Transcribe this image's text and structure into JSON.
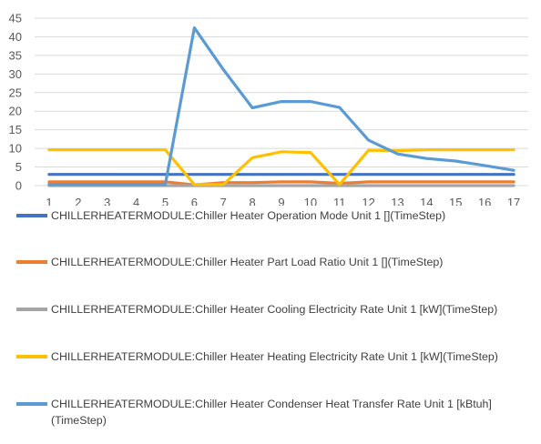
{
  "chart_data": {
    "type": "line",
    "x": [
      1,
      2,
      3,
      4,
      5,
      6,
      7,
      8,
      9,
      10,
      11,
      12,
      13,
      14,
      15,
      16,
      17
    ],
    "ylim": [
      0,
      45
    ],
    "yticks": [
      0,
      5,
      10,
      15,
      20,
      25,
      30,
      35,
      40,
      45
    ],
    "grid": "horizontal",
    "legend_position": "bottom",
    "series": [
      {
        "name": "CHILLERHEATERMODULE:Chiller Heater Operation Mode Unit 1 [](TimeStep)",
        "color": "#4472C4",
        "values": [
          3,
          3,
          3,
          3,
          3,
          3,
          3,
          3,
          3,
          3,
          3,
          3,
          3,
          3,
          3,
          3,
          3
        ]
      },
      {
        "name": "CHILLERHEATERMODULE:Chiller Heater Part Load Ratio Unit 1 [](TimeStep)",
        "color": "#ED7D31",
        "values": [
          1,
          1,
          1,
          1,
          1,
          0.2,
          0.8,
          0.8,
          1,
          1,
          0.6,
          1,
          1,
          1,
          1,
          1,
          1
        ]
      },
      {
        "name": "CHILLERHEATERMODULE:Chiller Heater Cooling Electricity Rate Unit 1 [kW](TimeStep)",
        "color": "#A5A5A5",
        "values": [
          0,
          0,
          0,
          0,
          0,
          0,
          0,
          0,
          0,
          0,
          0,
          0,
          0,
          0,
          0,
          0,
          0
        ]
      },
      {
        "name": "CHILLERHEATERMODULE:Chiller Heater Heating Electricity Rate Unit 1 [kW](TimeStep)",
        "color": "#FFC000",
        "values": [
          9.6,
          9.6,
          9.6,
          9.6,
          9.6,
          0.3,
          0.3,
          7.5,
          9.1,
          8.9,
          0.3,
          9.5,
          9.4,
          9.6,
          9.6,
          9.6,
          9.6
        ]
      },
      {
        "name": "CHILLERHEATERMODULE:Chiller Heater Condenser Heat Transfer Rate Unit 1 [kBtuh](TimeStep)",
        "color": "#5B9BD5",
        "values": [
          0.3,
          0.3,
          0.3,
          0.3,
          0.3,
          42.4,
          31.2,
          20.9,
          22.6,
          22.6,
          21,
          12.2,
          8.5,
          7.3,
          6.6,
          5.4,
          4.1
        ]
      }
    ]
  }
}
